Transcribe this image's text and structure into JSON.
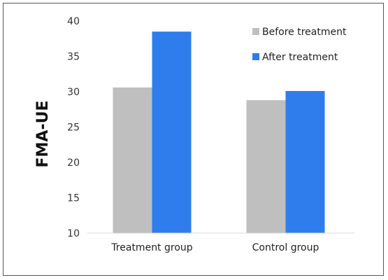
{
  "chart_data": {
    "type": "bar",
    "categories": [
      "Treatment group",
      "Control group"
    ],
    "series": [
      {
        "name": "Before treatment",
        "values": [
          30.6,
          28.8
        ],
        "color": "#bfbfbf"
      },
      {
        "name": "After treatment",
        "values": [
          38.5,
          30.1
        ],
        "color": "#2f7ded"
      }
    ],
    "xlabel": "",
    "ylabel": "FMA-UE",
    "ylim": [
      10,
      40
    ],
    "yticks": [
      10,
      15,
      20,
      25,
      30,
      35,
      40
    ],
    "grid": false,
    "legend_position": "top-right"
  }
}
